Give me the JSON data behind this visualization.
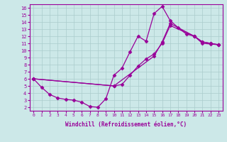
{
  "xlabel": "Windchill (Refroidissement éolien,°C)",
  "bg_color": "#cce8e8",
  "line_color": "#990099",
  "grid_color": "#aacccc",
  "xlim": [
    -0.5,
    23.5
  ],
  "ylim": [
    1.5,
    16.5
  ],
  "xticks": [
    0,
    1,
    2,
    3,
    4,
    5,
    6,
    7,
    8,
    9,
    10,
    11,
    12,
    13,
    14,
    15,
    16,
    17,
    18,
    19,
    20,
    21,
    22,
    23
  ],
  "yticks": [
    2,
    3,
    4,
    5,
    6,
    7,
    8,
    9,
    10,
    11,
    12,
    13,
    14,
    15,
    16
  ],
  "lines": [
    {
      "x": [
        0,
        1,
        2,
        3,
        4,
        5,
        6,
        7,
        8,
        9,
        10,
        11,
        12,
        13,
        14,
        15,
        16,
        17,
        18,
        19,
        20,
        21,
        22,
        23
      ],
      "y": [
        6.0,
        4.8,
        3.8,
        3.3,
        3.1,
        3.0,
        2.7,
        2.1,
        2.0,
        3.2,
        6.5,
        7.5,
        9.8,
        12.0,
        11.3,
        15.2,
        16.2,
        14.2,
        13.2,
        12.3,
        12.0,
        11.2,
        11.0,
        10.8
      ]
    },
    {
      "x": [
        0,
        10,
        11,
        12,
        13,
        14,
        15,
        16,
        17,
        20,
        21,
        22,
        23
      ],
      "y": [
        6.0,
        5.0,
        5.2,
        6.5,
        7.8,
        8.8,
        9.5,
        11.0,
        13.5,
        12.0,
        11.0,
        10.9,
        10.8
      ]
    },
    {
      "x": [
        0,
        10,
        15,
        16,
        17,
        20,
        21,
        22,
        23
      ],
      "y": [
        6.0,
        5.0,
        9.2,
        11.2,
        13.8,
        12.0,
        11.2,
        11.0,
        10.8
      ]
    }
  ],
  "marker": "D",
  "markersize": 2.5,
  "linewidth": 0.9,
  "xlabel_fontsize": 5.5,
  "tick_fontsize": 4.5
}
